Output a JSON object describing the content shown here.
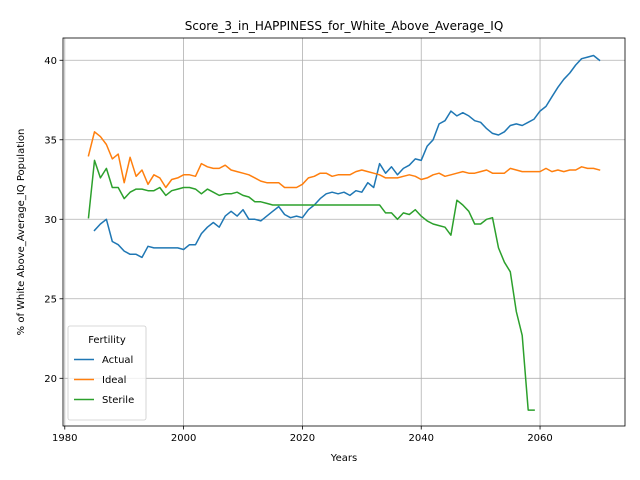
{
  "chart_data": {
    "type": "line",
    "title": "Score_3_in_HAPPINESS_for_White_Above_Average_IQ",
    "xlabel": "Years",
    "ylabel": "% of White Above_Average_IQ Population",
    "xlim": [
      1979.7,
      2074.3
    ],
    "ylim": [
      17.0,
      41.4
    ],
    "xticks": [
      1980,
      2000,
      2020,
      2040,
      2060
    ],
    "yticks": [
      20,
      25,
      30,
      35,
      40
    ],
    "grid": true,
    "legend": {
      "title": "Fertility",
      "position": "lower-left"
    },
    "series": [
      {
        "name": "Actual",
        "color": "#1f77b4",
        "x": [
          1985,
          1986,
          1987,
          1988,
          1989,
          1990,
          1991,
          1992,
          1993,
          1994,
          1995,
          1996,
          1997,
          1998,
          1999,
          2000,
          2001,
          2002,
          2003,
          2004,
          2005,
          2006,
          2007,
          2008,
          2009,
          2010,
          2011,
          2012,
          2013,
          2014,
          2015,
          2016,
          2017,
          2018,
          2019,
          2020,
          2021,
          2022,
          2023,
          2024,
          2025,
          2026,
          2027,
          2028,
          2029,
          2030,
          2031,
          2032,
          2033,
          2034,
          2035,
          2036,
          2037,
          2038,
          2039,
          2040,
          2041,
          2042,
          2043,
          2044,
          2045,
          2046,
          2047,
          2048,
          2049,
          2050,
          2051,
          2052,
          2053,
          2054,
          2055,
          2056,
          2057,
          2058,
          2059,
          2060,
          2061,
          2062,
          2063,
          2064,
          2065,
          2066,
          2067,
          2068,
          2069,
          2070
        ],
        "y": [
          29.3,
          29.7,
          30.0,
          28.6,
          28.4,
          28.0,
          27.8,
          27.8,
          27.6,
          28.3,
          28.2,
          28.2,
          28.2,
          28.2,
          28.2,
          28.1,
          28.4,
          28.4,
          29.1,
          29.5,
          29.8,
          29.5,
          30.2,
          30.5,
          30.2,
          30.6,
          30.0,
          30.0,
          29.9,
          30.2,
          30.5,
          30.8,
          30.3,
          30.1,
          30.2,
          30.1,
          30.6,
          30.9,
          31.3,
          31.6,
          31.7,
          31.6,
          31.7,
          31.5,
          31.8,
          31.7,
          32.3,
          32.0,
          33.5,
          32.9,
          33.3,
          32.8,
          33.2,
          33.4,
          33.8,
          33.7,
          34.6,
          35.0,
          36.0,
          36.2,
          36.8,
          36.5,
          36.7,
          36.5,
          36.2,
          36.1,
          35.7,
          35.4,
          35.3,
          35.5,
          35.9,
          36.0,
          35.9,
          36.1,
          36.3,
          36.8,
          37.1,
          37.7,
          38.3,
          38.8,
          39.2,
          39.7,
          40.1,
          40.2,
          40.3,
          40.0
        ]
      },
      {
        "name": "Ideal",
        "color": "#ff7f0e",
        "x": [
          1984,
          1985,
          1986,
          1987,
          1988,
          1989,
          1990,
          1991,
          1992,
          1993,
          1994,
          1995,
          1996,
          1997,
          1998,
          1999,
          2000,
          2001,
          2002,
          2003,
          2004,
          2005,
          2006,
          2007,
          2008,
          2009,
          2010,
          2011,
          2012,
          2013,
          2014,
          2015,
          2016,
          2017,
          2018,
          2019,
          2020,
          2021,
          2022,
          2023,
          2024,
          2025,
          2026,
          2027,
          2028,
          2029,
          2030,
          2031,
          2032,
          2033,
          2034,
          2035,
          2036,
          2037,
          2038,
          2039,
          2040,
          2041,
          2042,
          2043,
          2044,
          2045,
          2046,
          2047,
          2048,
          2049,
          2050,
          2051,
          2052,
          2053,
          2054,
          2055,
          2056,
          2057,
          2058,
          2059,
          2060,
          2061,
          2062,
          2063,
          2064,
          2065,
          2066,
          2067,
          2068,
          2069,
          2070
        ],
        "y": [
          34.0,
          35.5,
          35.2,
          34.7,
          33.8,
          34.1,
          32.3,
          33.9,
          32.7,
          33.1,
          32.2,
          32.8,
          32.6,
          32.0,
          32.5,
          32.6,
          32.8,
          32.8,
          32.7,
          33.5,
          33.3,
          33.2,
          33.2,
          33.4,
          33.1,
          33.0,
          32.9,
          32.8,
          32.6,
          32.4,
          32.3,
          32.3,
          32.3,
          32.0,
          32.0,
          32.0,
          32.2,
          32.6,
          32.7,
          32.9,
          32.9,
          32.7,
          32.8,
          32.8,
          32.8,
          33.0,
          33.1,
          33.0,
          32.9,
          32.8,
          32.6,
          32.6,
          32.6,
          32.7,
          32.8,
          32.7,
          32.5,
          32.6,
          32.8,
          32.9,
          32.7,
          32.8,
          32.9,
          33.0,
          32.9,
          32.9,
          33.0,
          33.1,
          32.9,
          32.9,
          32.9,
          33.2,
          33.1,
          33.0,
          33.0,
          33.0,
          33.0,
          33.2,
          33.0,
          33.1,
          33.0,
          33.1,
          33.1,
          33.3,
          33.2,
          33.2,
          33.1
        ]
      },
      {
        "name": "Sterile",
        "color": "#2ca02c",
        "x": [
          1984,
          1985,
          1986,
          1987,
          1988,
          1989,
          1990,
          1991,
          1992,
          1993,
          1994,
          1995,
          1996,
          1997,
          1998,
          1999,
          2000,
          2001,
          2002,
          2003,
          2004,
          2005,
          2006,
          2007,
          2008,
          2009,
          2010,
          2011,
          2012,
          2013,
          2014,
          2015,
          2016,
          2017,
          2018,
          2019,
          2020,
          2021,
          2022,
          2023,
          2024,
          2025,
          2026,
          2027,
          2028,
          2029,
          2030,
          2031,
          2032,
          2033,
          2034,
          2035,
          2036,
          2037,
          2038,
          2039,
          2040,
          2041,
          2042,
          2043,
          2044,
          2045,
          2046,
          2047,
          2048,
          2049,
          2050,
          2051,
          2052,
          2053,
          2054,
          2055,
          2056,
          2057,
          2058,
          2059
        ],
        "y": [
          30.1,
          33.7,
          32.6,
          33.2,
          32.0,
          32.0,
          31.3,
          31.7,
          31.9,
          31.9,
          31.8,
          31.8,
          32.0,
          31.5,
          31.8,
          31.9,
          32.0,
          32.0,
          31.9,
          31.6,
          31.9,
          31.7,
          31.5,
          31.6,
          31.6,
          31.7,
          31.5,
          31.4,
          31.1,
          31.1,
          31.0,
          30.9,
          30.9,
          30.9,
          30.9,
          30.9,
          30.9,
          30.9,
          30.9,
          30.9,
          30.9,
          30.9,
          30.9,
          30.9,
          30.9,
          30.9,
          30.9,
          30.9,
          30.9,
          30.9,
          30.4,
          30.4,
          30.0,
          30.4,
          30.3,
          30.6,
          30.2,
          29.9,
          29.7,
          29.6,
          29.5,
          29.0,
          31.2,
          30.9,
          30.5,
          29.7,
          29.7,
          30.0,
          30.1,
          28.2,
          27.3,
          26.7,
          24.2,
          22.7,
          18.0,
          18.0
        ]
      }
    ]
  }
}
